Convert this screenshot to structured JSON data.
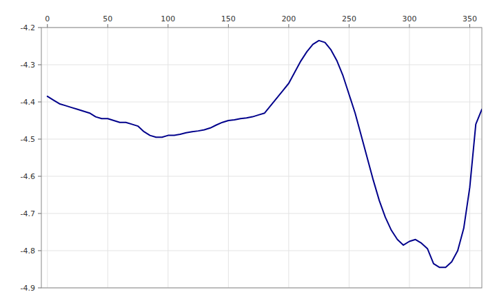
{
  "chart_data": {
    "type": "line",
    "x": [
      0,
      5,
      10,
      15,
      20,
      25,
      30,
      35,
      40,
      45,
      50,
      55,
      60,
      65,
      70,
      75,
      80,
      85,
      90,
      95,
      100,
      105,
      110,
      115,
      120,
      125,
      130,
      135,
      140,
      145,
      150,
      155,
      160,
      165,
      170,
      175,
      180,
      185,
      190,
      195,
      200,
      205,
      210,
      215,
      220,
      225,
      230,
      235,
      240,
      245,
      250,
      255,
      260,
      265,
      270,
      275,
      280,
      285,
      290,
      295,
      300,
      305,
      310,
      315,
      320,
      325,
      330,
      335,
      340,
      345,
      350,
      355,
      360
    ],
    "values": [
      -4.385,
      -4.395,
      -4.405,
      -4.41,
      -4.415,
      -4.42,
      -4.425,
      -4.43,
      -4.44,
      -4.445,
      -4.445,
      -4.45,
      -4.455,
      -4.455,
      -4.46,
      -4.465,
      -4.48,
      -4.49,
      -4.495,
      -4.495,
      -4.49,
      -4.49,
      -4.487,
      -4.483,
      -4.48,
      -4.478,
      -4.475,
      -4.47,
      -4.462,
      -4.455,
      -4.45,
      -4.448,
      -4.445,
      -4.443,
      -4.44,
      -4.435,
      -4.43,
      -4.41,
      -4.39,
      -4.37,
      -4.35,
      -4.32,
      -4.29,
      -4.265,
      -4.245,
      -4.235,
      -4.24,
      -4.26,
      -4.29,
      -4.33,
      -4.38,
      -4.43,
      -4.49,
      -4.55,
      -4.61,
      -4.665,
      -4.71,
      -4.745,
      -4.77,
      -4.785,
      -4.775,
      -4.77,
      -4.78,
      -4.795,
      -4.835,
      -4.845,
      -4.845,
      -4.83,
      -4.8,
      -4.74,
      -4.63,
      -4.46,
      -4.42
    ],
    "color": "#00008B",
    "xlim": [
      -5,
      360
    ],
    "ylim": [
      -4.9,
      -4.2
    ],
    "xticks": [
      0,
      50,
      100,
      150,
      200,
      250,
      300,
      350
    ],
    "yticks": [
      -4.2,
      -4.3,
      -4.4,
      -4.5,
      -4.6,
      -4.7,
      -4.8,
      -4.9
    ],
    "grid": true
  }
}
